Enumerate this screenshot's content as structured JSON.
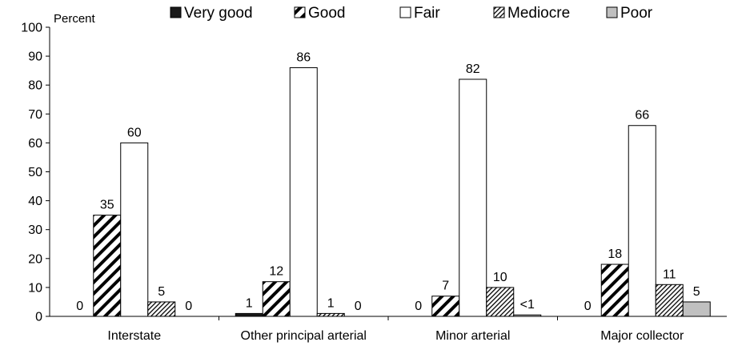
{
  "chart_data": {
    "type": "bar",
    "ylabel": "Percent",
    "ylim": [
      0,
      100
    ],
    "yticks": [
      0,
      10,
      20,
      30,
      40,
      50,
      60,
      70,
      80,
      90,
      100
    ],
    "legend_position": "top",
    "categories": [
      "Interstate",
      "Other principal arterial",
      "Minor arterial",
      "Major collector"
    ],
    "series": [
      {
        "name": "Very good",
        "fill": "solid-black",
        "values": [
          0,
          1,
          0,
          0
        ],
        "labels": [
          "0",
          "1",
          "0",
          "0"
        ]
      },
      {
        "name": "Good",
        "fill": "wide-diagonal-hatch",
        "values": [
          35,
          12,
          7,
          18
        ],
        "labels": [
          "35",
          "12",
          "7",
          "18"
        ]
      },
      {
        "name": "Fair",
        "fill": "white",
        "values": [
          60,
          86,
          82,
          66
        ],
        "labels": [
          "60",
          "86",
          "82",
          "66"
        ]
      },
      {
        "name": "Mediocre",
        "fill": "fine-diagonal-hatch",
        "values": [
          5,
          1,
          10,
          11
        ],
        "labels": [
          "5",
          "1",
          "10",
          "11"
        ]
      },
      {
        "name": "Poor",
        "fill": "light-gray",
        "values": [
          0,
          0,
          0.5,
          5
        ],
        "labels": [
          "0",
          "0",
          "<1",
          "5"
        ]
      }
    ],
    "colors": {
      "very_good": "#1a1a1a",
      "fair": "#ffffff",
      "poor": "#c0c0c0",
      "axis": "#000000"
    }
  }
}
